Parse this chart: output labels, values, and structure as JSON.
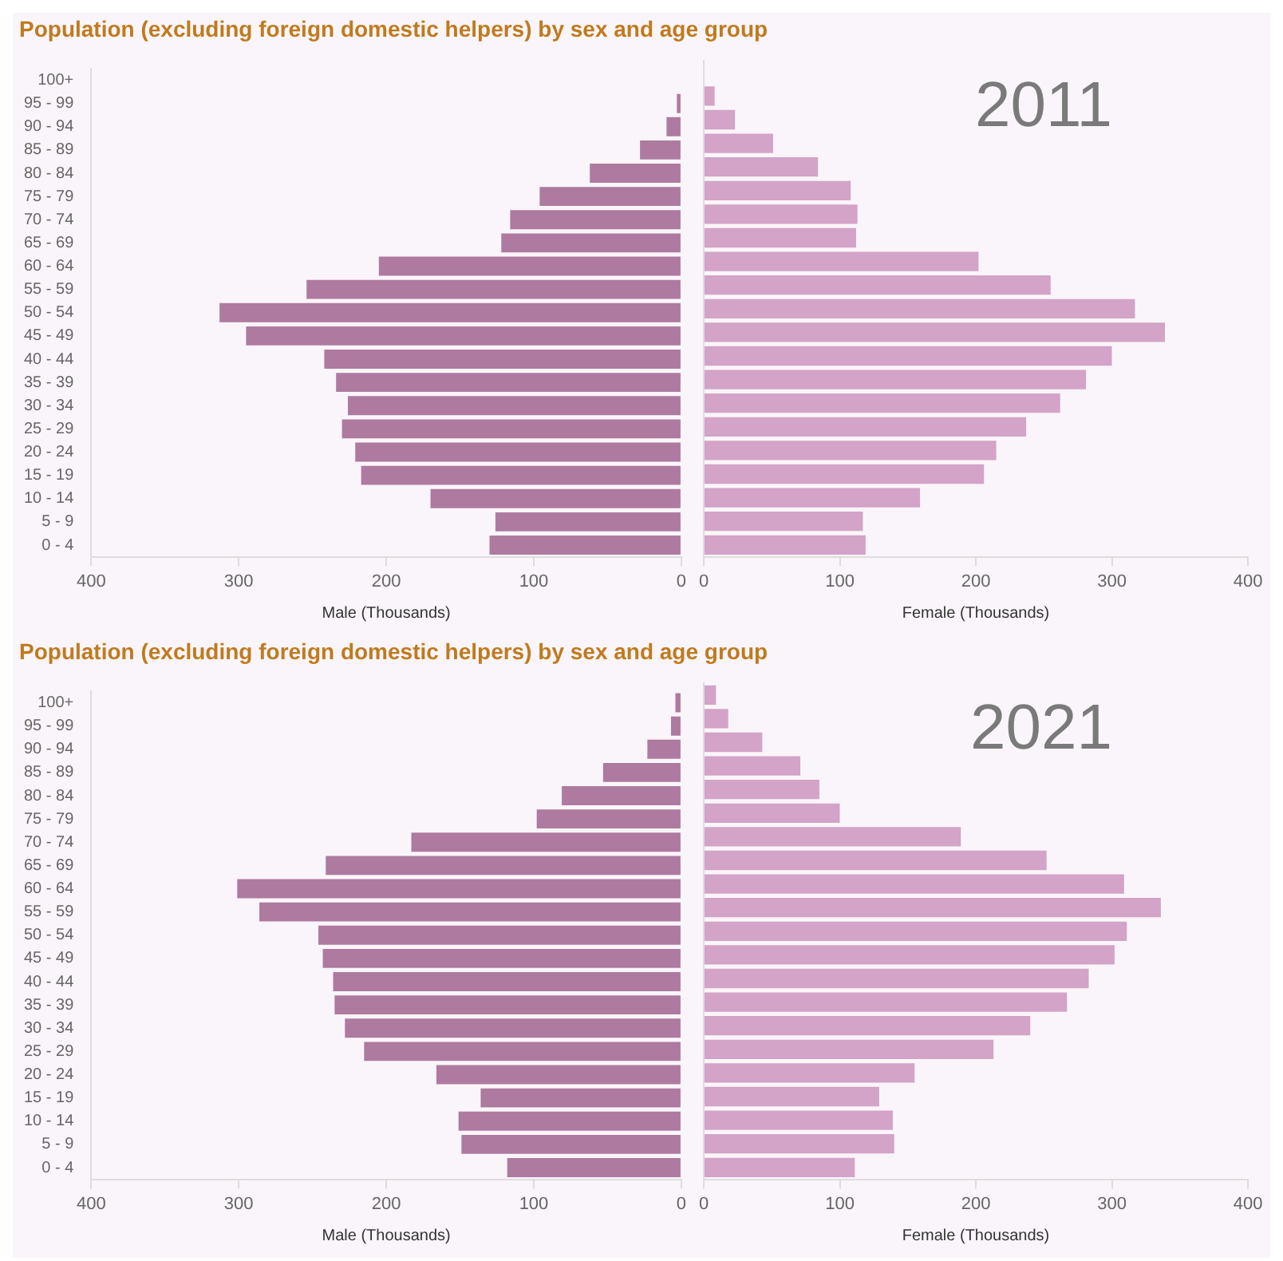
{
  "chart_data": [
    {
      "type": "bar",
      "orientation": "horizontal",
      "title": "Population (excluding foreign domestic helpers) by sex and age group",
      "xlabel": "Male (Thousands)",
      "categories": [
        "100+",
        "95 - 99",
        "90 - 94",
        "85 - 89",
        "80 - 84",
        "75 - 79",
        "70 - 74",
        "65 - 69",
        "60 - 64",
        "55 - 59",
        "50 - 54",
        "45 - 49",
        "40 - 44",
        "35 - 39",
        "30 - 34",
        "25 - 29",
        "20 - 24",
        "15 - 19",
        "10 - 14",
        "5 - 9",
        "0 - 4"
      ],
      "color": "#ae7aa0",
      "values": [
        0,
        3,
        10,
        28,
        62,
        96,
        116,
        122,
        205,
        254,
        313,
        295,
        242,
        234,
        226,
        230,
        221,
        217,
        170,
        126,
        130
      ],
      "xlim": [
        400,
        0
      ],
      "xticks": [
        400,
        300,
        200,
        100,
        0
      ],
      "grid": false
    },
    {
      "type": "bar",
      "orientation": "horizontal",
      "xlabel": "Female (Thousands)",
      "annotations": [
        "2011"
      ],
      "categories": [
        null,
        null,
        null,
        null,
        null,
        null,
        null,
        null,
        null,
        null,
        null,
        null,
        null,
        null,
        null,
        null,
        null,
        null,
        null,
        null,
        null
      ],
      "color": "#d3a3c8",
      "values": [
        0,
        8,
        23,
        51,
        84,
        108,
        113,
        112,
        202,
        255,
        317,
        339,
        300,
        281,
        262,
        237,
        215,
        206,
        159,
        117,
        119
      ],
      "xlim": [
        0,
        400
      ],
      "xticks": [
        0,
        100,
        200,
        300,
        400
      ],
      "grid": false,
      "tick_labels": "x"
    },
    {
      "type": "bar",
      "orientation": "horizontal",
      "title": "Population (excluding foreign domestic helpers) by sex and age group",
      "xlabel": "Male (Thousands)",
      "categories": [
        "100+",
        "95 - 99",
        "90 - 94",
        "85 - 89",
        "80 - 84",
        "75 - 79",
        "70 - 74",
        "65 - 69",
        "60 - 64",
        "55 - 59",
        "50 - 54",
        "45 - 49",
        "40 - 44",
        "35 - 39",
        "30 - 34",
        "25 - 29",
        "20 - 24",
        "15 - 19",
        "10 - 14",
        "5 - 9",
        "0 - 4"
      ],
      "color": "#ae7aa0",
      "values": [
        4,
        7,
        23,
        53,
        81,
        98,
        183,
        241,
        301,
        286,
        246,
        243,
        236,
        235,
        228,
        215,
        166,
        136,
        151,
        149,
        118
      ],
      "xlim": [
        400,
        0
      ],
      "xticks": [
        400,
        300,
        200,
        100,
        0
      ],
      "grid": false
    },
    {
      "type": "bar",
      "orientation": "horizontal",
      "xlabel": "Female (Thousands)",
      "annotations": [
        "2021"
      ],
      "categories": [
        null,
        null,
        null,
        null,
        null,
        null,
        null,
        null,
        null,
        null,
        null,
        null,
        null,
        null,
        null,
        null,
        null,
        null,
        null,
        null,
        null
      ],
      "color": "#d3a3c8",
      "values": [
        9,
        18,
        43,
        71,
        85,
        100,
        189,
        252,
        309,
        336,
        311,
        302,
        283,
        267,
        240,
        213,
        155,
        129,
        139,
        140,
        111
      ],
      "xlim": [
        0,
        400
      ],
      "xticks": [
        0,
        100,
        200,
        300,
        400
      ],
      "grid": false,
      "tick_labels": "x"
    }
  ]
}
